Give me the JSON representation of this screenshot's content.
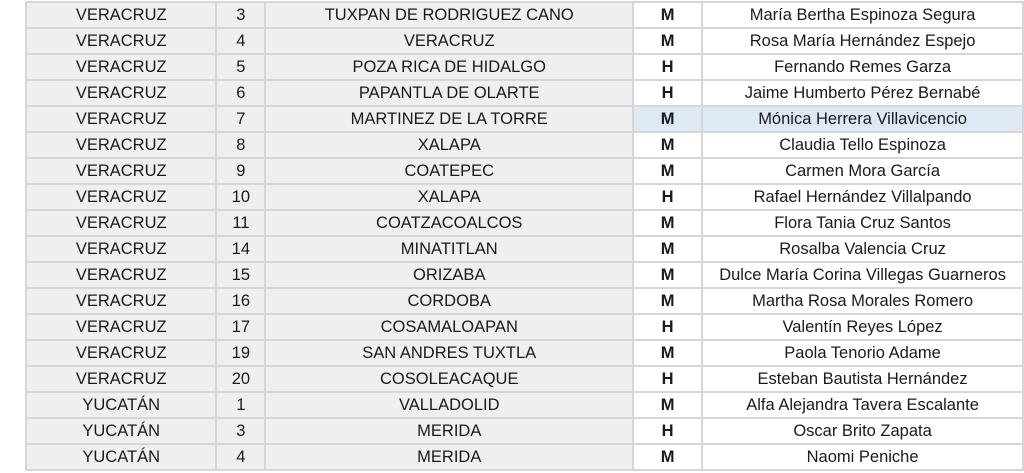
{
  "colors": {
    "female": "#d0146e",
    "male": "#2e75b6",
    "selected_cell": "#dde9f5",
    "grid": "#d6d6d6"
  },
  "selected_row": 4,
  "rows": [
    {
      "state": "VERACRUZ",
      "district": "3",
      "municipality": "TUXPAN DE RODRIGUEZ CANO",
      "gender": "M",
      "name": "María Bertha Espinoza Segura"
    },
    {
      "state": "VERACRUZ",
      "district": "4",
      "municipality": "VERACRUZ",
      "gender": "M",
      "name": "Rosa María Hernández Espejo"
    },
    {
      "state": "VERACRUZ",
      "district": "5",
      "municipality": "POZA RICA DE HIDALGO",
      "gender": "H",
      "name": "Fernando Remes Garza"
    },
    {
      "state": "VERACRUZ",
      "district": "6",
      "municipality": "PAPANTLA DE OLARTE",
      "gender": "H",
      "name": "Jaime Humberto Pérez Bernabé"
    },
    {
      "state": "VERACRUZ",
      "district": "7",
      "municipality": "MARTINEZ DE LA TORRE",
      "gender": "M",
      "name": "Mónica Herrera Villavicencio"
    },
    {
      "state": "VERACRUZ",
      "district": "8",
      "municipality": "XALAPA",
      "gender": "M",
      "name": "Claudia Tello Espinoza"
    },
    {
      "state": "VERACRUZ",
      "district": "9",
      "municipality": "COATEPEC",
      "gender": "M",
      "name": "Carmen Mora García"
    },
    {
      "state": "VERACRUZ",
      "district": "10",
      "municipality": "XALAPA",
      "gender": "H",
      "name": "Rafael Hernández Villalpando"
    },
    {
      "state": "VERACRUZ",
      "district": "11",
      "municipality": "COATZACOALCOS",
      "gender": "M",
      "name": "Flora Tania Cruz Santos"
    },
    {
      "state": "VERACRUZ",
      "district": "14",
      "municipality": "MINATITLAN",
      "gender": "M",
      "name": "Rosalba Valencia Cruz"
    },
    {
      "state": "VERACRUZ",
      "district": "15",
      "municipality": "ORIZABA",
      "gender": "M",
      "name": "Dulce María Corina Villegas Guarneros"
    },
    {
      "state": "VERACRUZ",
      "district": "16",
      "municipality": "CORDOBA",
      "gender": "M",
      "name": "Martha Rosa Morales Romero"
    },
    {
      "state": "VERACRUZ",
      "district": "17",
      "municipality": "COSAMALOAPAN",
      "gender": "H",
      "name": "Valentín Reyes López"
    },
    {
      "state": "VERACRUZ",
      "district": "19",
      "municipality": "SAN ANDRES TUXTLA",
      "gender": "M",
      "name": "Paola Tenorio Adame"
    },
    {
      "state": "VERACRUZ",
      "district": "20",
      "municipality": "COSOLEACAQUE",
      "gender": "H",
      "name": "Esteban Bautista Hernández"
    },
    {
      "state": "YUCATÁN",
      "district": "1",
      "municipality": "VALLADOLID",
      "gender": "M",
      "name": "Alfa Alejandra Tavera Escalante"
    },
    {
      "state": "YUCATÁN",
      "district": "3",
      "municipality": "MERIDA",
      "gender": "H",
      "name": "Oscar Brito Zapata"
    },
    {
      "state": "YUCATÁN",
      "district": "4",
      "municipality": "MERIDA",
      "gender": "M",
      "name": "Naomi Peniche"
    }
  ]
}
